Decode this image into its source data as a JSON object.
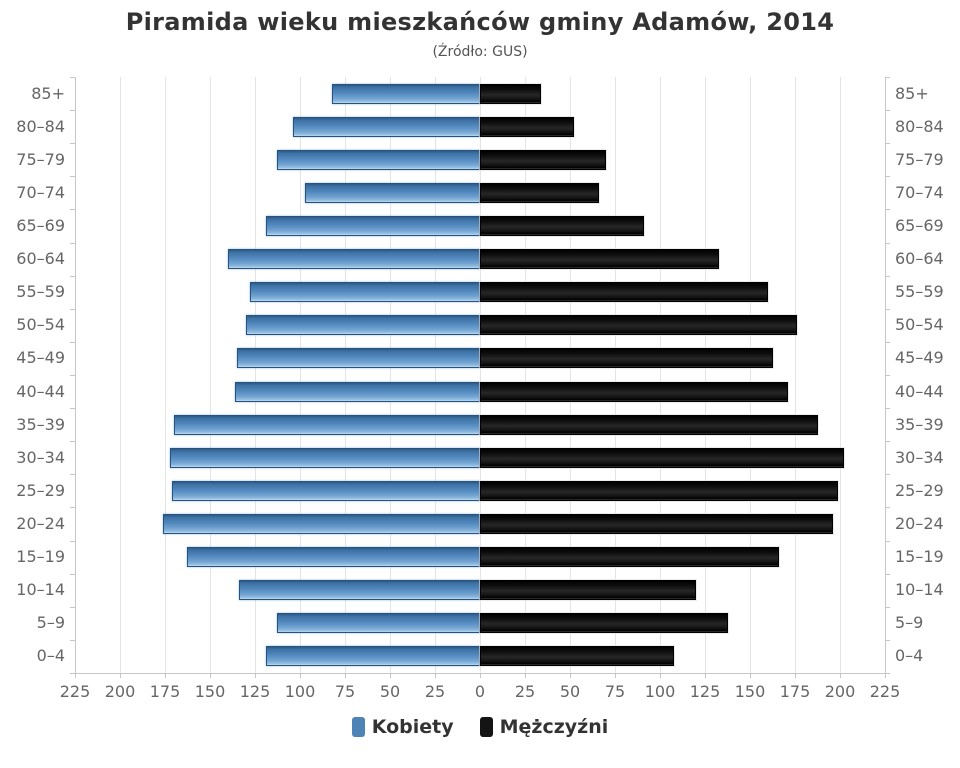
{
  "title": "Piramida wieku mieszkańców gminy Adamów, 2014",
  "subtitle": "(Źródło: GUS)",
  "chart_data": {
    "type": "bar",
    "variant": "population-pyramid",
    "title": "Piramida wieku mieszkańców gminy Adamów, 2014",
    "subtitle": "(Źródło: GUS)",
    "categories": [
      "85+",
      "80–84",
      "75–79",
      "70–74",
      "65–69",
      "60–64",
      "55–59",
      "50–54",
      "45–49",
      "40–44",
      "35–39",
      "30–34",
      "25–29",
      "20–24",
      "15–19",
      "10–14",
      "5–9",
      "0–4"
    ],
    "series": [
      {
        "name": "Kobiety",
        "side": "left",
        "color": "#4d83b5",
        "values": [
          82,
          104,
          113,
          97,
          119,
          140,
          128,
          130,
          135,
          136,
          170,
          172,
          171,
          176,
          163,
          134,
          113,
          119
        ]
      },
      {
        "name": "Mężczyźni",
        "side": "right",
        "color": "#141414",
        "values": [
          34,
          52,
          70,
          66,
          91,
          133,
          160,
          176,
          163,
          171,
          188,
          202,
          199,
          196,
          166,
          120,
          138,
          108
        ]
      }
    ],
    "xlabel": "",
    "ylabel": "",
    "axis": {
      "min": 0,
      "max": 225,
      "tick_interval": 25,
      "tick_labels": [
        "225",
        "200",
        "175",
        "150",
        "125",
        "100",
        "75",
        "50",
        "25",
        "0",
        "25",
        "50",
        "75",
        "100",
        "125",
        "150",
        "175",
        "200",
        "225"
      ]
    },
    "grid": true,
    "legend_position": "bottom"
  },
  "colors": {
    "female": "#4d83b5",
    "male": "#141414",
    "gridline": "#e4e4e4",
    "axis": "#c6c6c6",
    "label": "#666666",
    "title": "#333333"
  }
}
